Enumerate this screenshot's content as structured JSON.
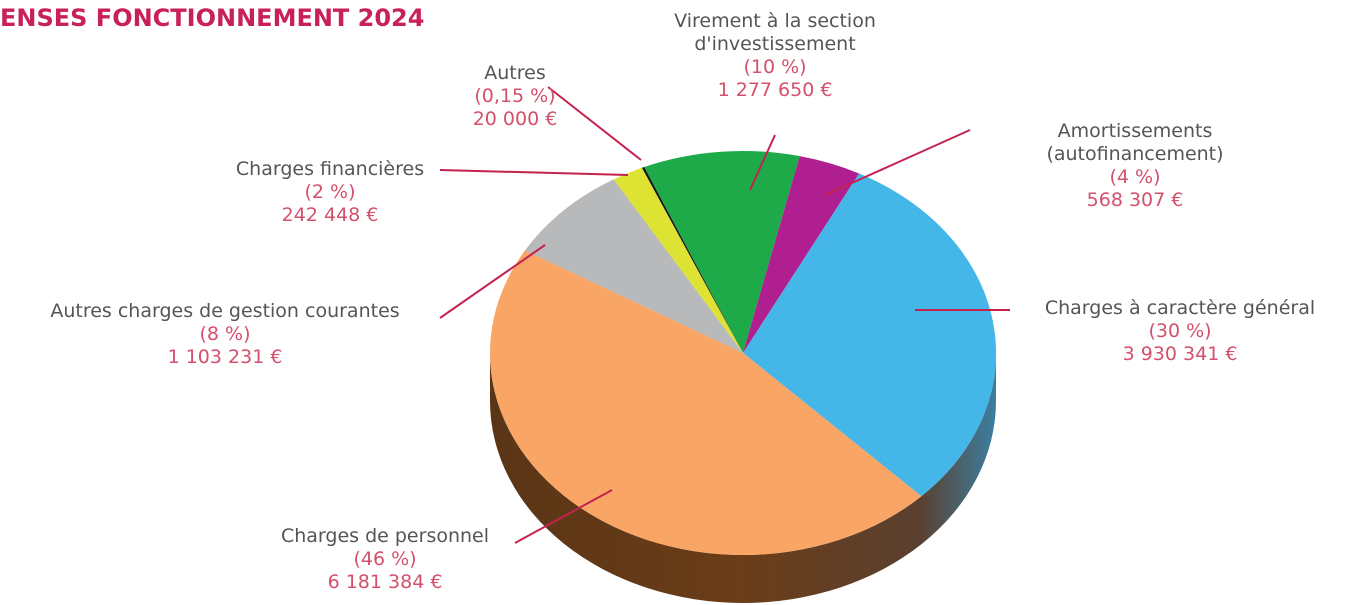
{
  "chart_data": {
    "type": "pie",
    "title": "ENSES FONCTIONNEMENT 2024",
    "categories": [
      "Virement à la section d'investissement",
      "Amortissements (autofinancement)",
      "Charges à caractère général",
      "Charges de personnel",
      "Autres charges de gestion courantes",
      "Charges financières",
      "Autres"
    ],
    "values": [
      10,
      4,
      30,
      46,
      8,
      2,
      0.15
    ],
    "value_labels": [
      "(10 %)",
      "(4 %)",
      "(30 %)",
      "(46 %)",
      "(8 %)",
      "(2 %)",
      "(0,15 %)"
    ],
    "amounts": [
      1277650,
      568307,
      3930341,
      6181384,
      1103231,
      242448,
      20000
    ],
    "amount_labels": [
      "1 277 650 €",
      "568 307 €",
      "3 930 341 €",
      "6 181 384 €",
      "1 103 231 €",
      "242 448 €",
      "20 000 €"
    ],
    "colors": [
      "#1faa4a",
      "#b01f8f",
      "#45b6e8",
      "#f8a566",
      "#b8b9ba",
      "#dde333",
      "#151515"
    ]
  }
}
